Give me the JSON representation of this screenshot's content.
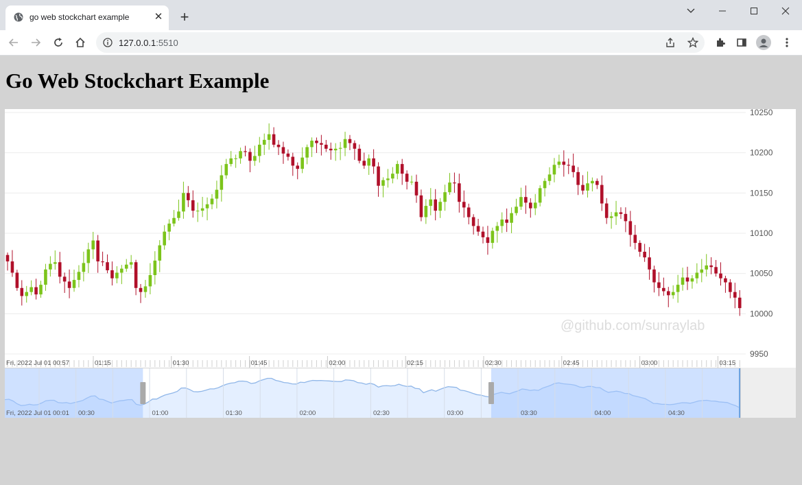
{
  "browser": {
    "tab_title": "go web stockchart example",
    "new_tab": "+",
    "url_host": "127.0.0.1",
    "url_port": ":5510"
  },
  "page": {
    "heading": "Go Web Stockchart Example",
    "watermark": "@github.com/sunraylab"
  },
  "colors": {
    "up": "#7cc41b",
    "down": "#b0102a",
    "background": "#d3d3d3",
    "navigator_selection": "#a8c8ff",
    "navigator_line": "#8fb6e8"
  },
  "chart_data": {
    "type": "candlestick",
    "y_axis": {
      "ticks": [
        "10250",
        "10200",
        "10150",
        "10100",
        "10050",
        "10000",
        "9950"
      ],
      "range": [
        9950,
        10250
      ],
      "side": "right"
    },
    "x_axis": {
      "first_label": "Fri, 2022 Jul 01 00:57",
      "labels": [
        "01:15",
        "01:30",
        "01:45",
        "02:00",
        "02:15",
        "02:30",
        "02:45",
        "03:00",
        "03:15"
      ]
    },
    "closes": [
      10065,
      10051,
      10032,
      10022,
      10027,
      10033,
      10024,
      10036,
      10055,
      10062,
      10064,
      10046,
      10040,
      10032,
      10042,
      10052,
      10063,
      10080,
      10091,
      10065,
      10064,
      10054,
      10044,
      10051,
      10056,
      10061,
      10064,
      10032,
      10027,
      10034,
      10048,
      10066,
      10085,
      10102,
      10112,
      10119,
      10127,
      10150,
      10141,
      10128,
      10128,
      10131,
      10136,
      10143,
      10154,
      10172,
      10186,
      10193,
      10193,
      10202,
      10201,
      10190,
      10196,
      10210,
      10216,
      10223,
      10210,
      10207,
      10199,
      10195,
      10184,
      10180,
      10194,
      10207,
      10215,
      10212,
      10210,
      10205,
      10203,
      10205,
      10206,
      10217,
      10212,
      10205,
      10190,
      10184,
      10193,
      10183,
      10159,
      10166,
      10168,
      10174,
      10186,
      10174,
      10164,
      10164,
      10147,
      10120,
      10134,
      10142,
      10128,
      10139,
      10151,
      10163,
      10162,
      10139,
      10132,
      10120,
      10109,
      10102,
      10095,
      10088,
      10103,
      10109,
      10117,
      10113,
      10125,
      10133,
      10145,
      10138,
      10131,
      10138,
      10156,
      10165,
      10173,
      10185,
      10189,
      10185,
      10184,
      10176,
      10160,
      10153,
      10162,
      10165,
      10160,
      10137,
      10119,
      10121,
      10126,
      10124,
      10115,
      10098,
      10088,
      10077,
      10070,
      10055,
      10039,
      10032,
      10028,
      10023,
      10027,
      10036,
      10045,
      10040,
      10044,
      10051,
      10055,
      10060,
      10058,
      10050,
      10044,
      10039,
      10027,
      10020,
      10007
    ]
  },
  "navigator": {
    "first_label": "Fri, 2022 Jul 01 00:01",
    "labels": [
      "00:30",
      "01:00",
      "01:30",
      "02:00",
      "02:30",
      "03:00",
      "03:30",
      "04:00",
      "04:30"
    ],
    "selection_start_fraction": 0.188,
    "selection_end_fraction": 0.662
  }
}
